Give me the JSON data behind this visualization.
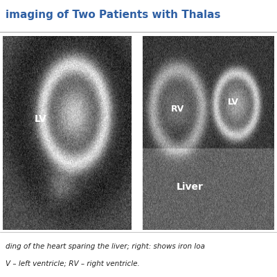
{
  "title_text": "imaging of Two Patients with Thalas",
  "title_color": "#2E5FA3",
  "title_fontsize": 11,
  "bg_color": "#ffffff",
  "caption_line1": "ding of the heart sparing the liver; right: shows iron loa",
  "caption_line2": "V – left ventricle; RV – right ventricle.",
  "caption_fontsize": 7.5,
  "left_label": "LV",
  "right_labels": [
    "RV",
    "LV",
    "Liver"
  ],
  "separator_color": "#cccccc"
}
